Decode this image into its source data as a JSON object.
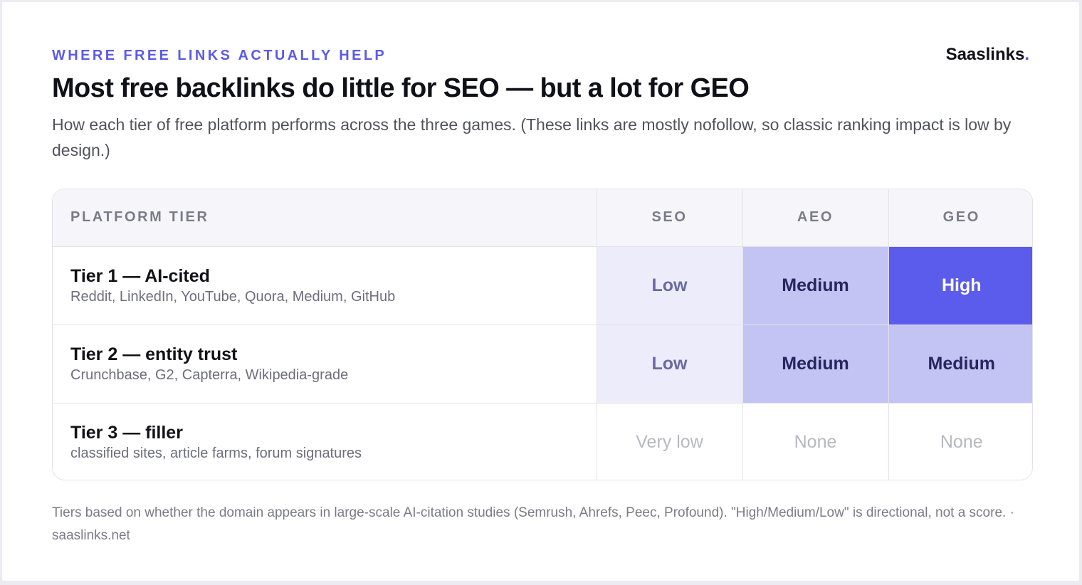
{
  "header": {
    "eyebrow": "WHERE FREE LINKS ACTUALLY HELP",
    "brand_name": "Saaslinks",
    "brand_dot": ".",
    "title": "Most free backlinks do little for SEO — but a lot for GEO",
    "subtitle": "How each tier of free platform performs across the three games. (These links are mostly nofollow, so classic ranking impact is low by design.)"
  },
  "chart_data": {
    "type": "table",
    "columns": [
      "PLATFORM TIER",
      "SEO",
      "AEO",
      "GEO"
    ],
    "rows": [
      {
        "tier": "Tier 1 — AI-cited",
        "platforms": "Reddit, LinkedIn, YouTube, Quora, Medium, GitHub",
        "values": [
          "Low",
          "Medium",
          "High"
        ],
        "levels": [
          "low",
          "medium",
          "high"
        ]
      },
      {
        "tier": "Tier 2 — entity trust",
        "platforms": "Crunchbase, G2, Capterra, Wikipedia-grade",
        "values": [
          "Low",
          "Medium",
          "Medium"
        ],
        "levels": [
          "low",
          "medium",
          "medium"
        ]
      },
      {
        "tier": "Tier 3 — filler",
        "platforms": "classified sites, article farms, forum signatures",
        "values": [
          "Very low",
          "None",
          "None"
        ],
        "levels": [
          "none",
          "none",
          "none"
        ]
      }
    ],
    "level_colors": {
      "high": "#5b5bec",
      "medium": "#c3c3f4",
      "low": "#ececfb",
      "none": "#ffffff"
    }
  },
  "footnote": "Tiers based on whether the domain appears in large-scale AI-citation studies (Semrush, Ahrefs, Peec, Profound). \"High/Medium/Low\" is directional, not a score. · saaslinks.net",
  "colors": {
    "accent": "#5b5be8"
  }
}
